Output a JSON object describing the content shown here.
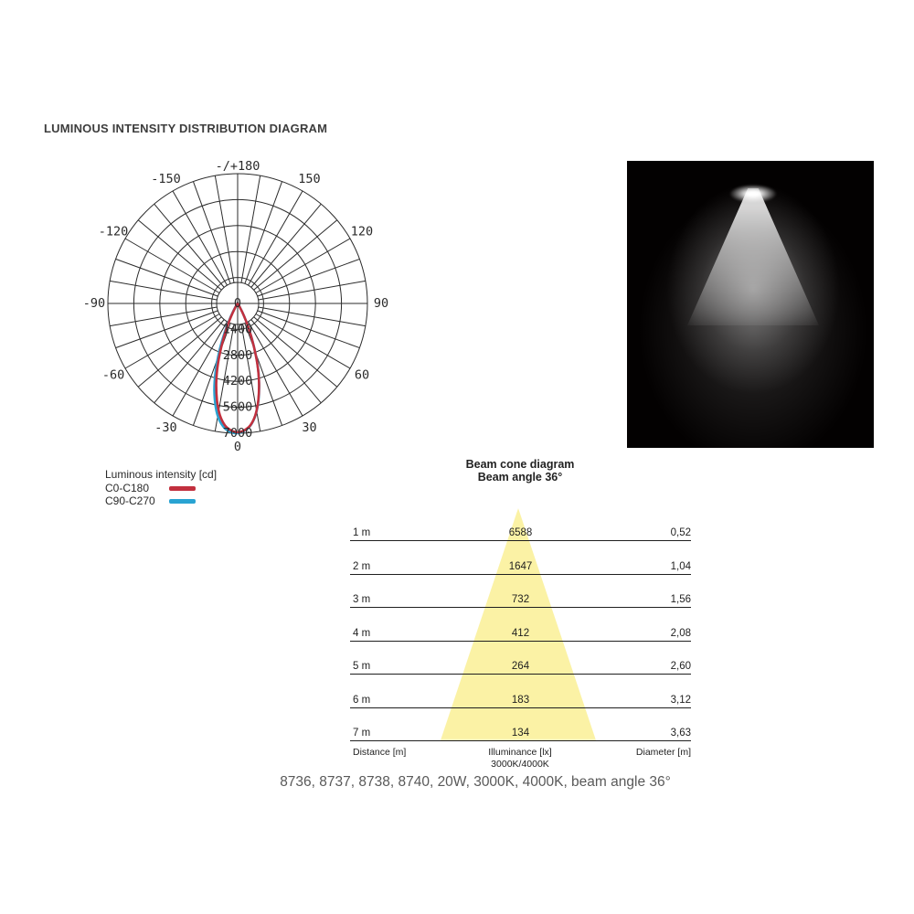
{
  "page": {
    "heading": "LUMINOUS INTENSITY DISTRIBUTION DIAGRAM",
    "caption": "8736, 8737, 8738, 8740, 20W, 3000K, 4000K, beam angle 36°"
  },
  "colors": {
    "accent_red": "#c2303e",
    "accent_blue": "#29a3d2",
    "cone_yellow": "#fbf2a5",
    "grid": "#2b2b2b"
  },
  "polar_legend": {
    "title": "Luminous intensity [cd]",
    "items": [
      {
        "label": "C0-C180",
        "color": "#c2303e"
      },
      {
        "label": "C90-C270",
        "color": "#29a3d2"
      }
    ]
  },
  "beam_cone": {
    "title": "Beam cone diagram",
    "subtitle": "Beam angle 36°",
    "footer": {
      "left": "Distance [m]",
      "center_top": "Illuminance [lx]",
      "center_bottom": "3000K/4000K",
      "right": "Diameter [m]"
    }
  },
  "chart_data": [
    {
      "type": "line",
      "variant": "polar-luminous-intensity",
      "title": "Luminous intensity [cd]",
      "units": "cd",
      "max_cd": 7000,
      "ring_step_cd": 1400,
      "angle_step_deg": 10,
      "angle_labels": [
        {
          "value": 180,
          "label": "-/+180"
        },
        {
          "value": 150,
          "label": "150"
        },
        {
          "value": 120,
          "label": "120"
        },
        {
          "value": 90,
          "label": "90"
        },
        {
          "value": 60,
          "label": "60"
        },
        {
          "value": 30,
          "label": "30"
        },
        {
          "value": 0,
          "label": "0"
        },
        {
          "value": -30,
          "label": "-30"
        },
        {
          "value": -60,
          "label": "-60"
        },
        {
          "value": -90,
          "label": "-90"
        },
        {
          "value": -120,
          "label": "-120"
        },
        {
          "value": -150,
          "label": "-150"
        }
      ],
      "ring_labels": [
        {
          "cd": 0,
          "label": "0"
        },
        {
          "cd": 1400,
          "label": "1400"
        },
        {
          "cd": 2800,
          "label": "2800"
        },
        {
          "cd": 4200,
          "label": "4200"
        },
        {
          "cd": 5600,
          "label": "5600"
        },
        {
          "cd": 7000,
          "label": "7000"
        }
      ],
      "series": [
        {
          "name": "C90-C270",
          "color": "#29a3d2",
          "points": [
            [
              -40,
              0
            ],
            [
              -35,
              90
            ],
            [
              -30,
              420
            ],
            [
              -27,
              950
            ],
            [
              -24,
              1750
            ],
            [
              -21,
              2750
            ],
            [
              -18,
              3850
            ],
            [
              -15,
              4850
            ],
            [
              -12,
              5700
            ],
            [
              -9,
              6350
            ],
            [
              -6,
              6750
            ],
            [
              -3,
              6950
            ],
            [
              0,
              7000
            ],
            [
              3,
              6880
            ],
            [
              6,
              6620
            ],
            [
              9,
              6120
            ],
            [
              12,
              5380
            ],
            [
              15,
              4480
            ],
            [
              18,
              3480
            ],
            [
              21,
              2380
            ],
            [
              24,
              1470
            ],
            [
              27,
              760
            ],
            [
              30,
              310
            ],
            [
              35,
              60
            ],
            [
              40,
              0
            ]
          ]
        },
        {
          "name": "C0-C180",
          "color": "#c2303e",
          "points": [
            [
              -40,
              0
            ],
            [
              -35,
              60
            ],
            [
              -30,
              300
            ],
            [
              -27,
              750
            ],
            [
              -24,
              1450
            ],
            [
              -21,
              2350
            ],
            [
              -18,
              3450
            ],
            [
              -15,
              4450
            ],
            [
              -12,
              5350
            ],
            [
              -9,
              6100
            ],
            [
              -6,
              6600
            ],
            [
              -3,
              6850
            ],
            [
              0,
              6950
            ],
            [
              3,
              6850
            ],
            [
              6,
              6600
            ],
            [
              9,
              6100
            ],
            [
              12,
              5350
            ],
            [
              15,
              4450
            ],
            [
              18,
              3450
            ],
            [
              21,
              2350
            ],
            [
              24,
              1450
            ],
            [
              27,
              750
            ],
            [
              30,
              300
            ],
            [
              35,
              60
            ],
            [
              40,
              0
            ]
          ]
        }
      ]
    },
    {
      "type": "table",
      "title": "Beam cone diagram",
      "subtitle": "Beam angle 36°",
      "beam_angle_deg": 36,
      "columns": [
        "Distance [m]",
        "Illuminance [lx] 3000K/4000K",
        "Diameter [m]"
      ],
      "rows": [
        [
          "1 m",
          "6588",
          "0,52"
        ],
        [
          "2 m",
          "1647",
          "1,04"
        ],
        [
          "3 m",
          "732",
          "1,56"
        ],
        [
          "4 m",
          "412",
          "2,08"
        ],
        [
          "5 m",
          "264",
          "2,60"
        ],
        [
          "6 m",
          "183",
          "3,12"
        ],
        [
          "7 m",
          "134",
          "3,63"
        ]
      ]
    }
  ]
}
